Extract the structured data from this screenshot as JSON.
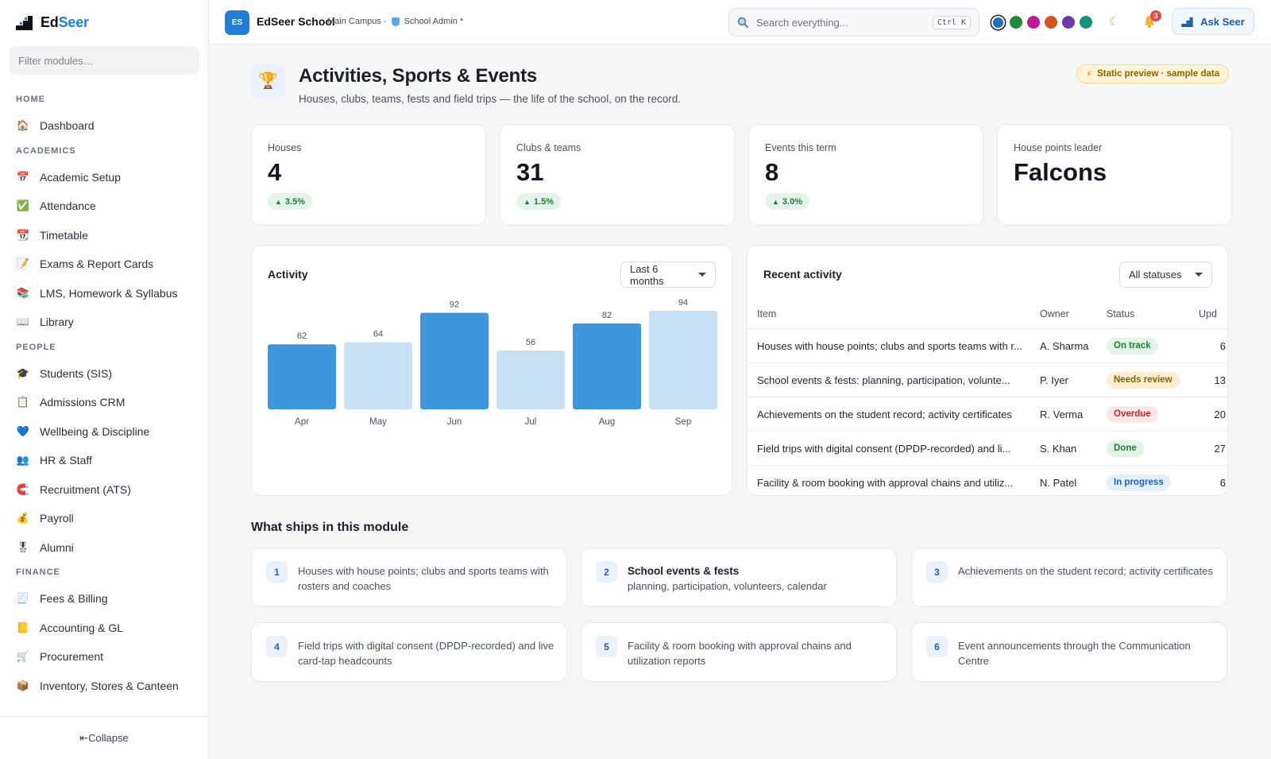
{
  "brand": {
    "name_plain": "Ed",
    "name_accent": "Seer",
    "accent_color": "#1f7fd4"
  },
  "sidebar": {
    "filter_placeholder": "Filter modules…",
    "sections": [
      {
        "title": "HOME",
        "items": [
          {
            "label": "Dashboard",
            "icon": "house-icon"
          }
        ]
      },
      {
        "title": "ACADEMICS",
        "items": [
          {
            "label": "Academic Setup",
            "icon": "calendar-icon"
          },
          {
            "label": "Attendance",
            "icon": "check-box-icon"
          },
          {
            "label": "Timetable",
            "icon": "calendar-grid-icon"
          },
          {
            "label": "Exams & Report Cards",
            "icon": "memo-icon"
          },
          {
            "label": "LMS, Homework & Syllabus",
            "icon": "books-icon"
          },
          {
            "label": "Library",
            "icon": "open-book-icon"
          }
        ]
      },
      {
        "title": "PEOPLE",
        "items": [
          {
            "label": "Students (SIS)",
            "icon": "graduation-cap-icon"
          },
          {
            "label": "Admissions CRM",
            "icon": "clipboard-icon"
          },
          {
            "label": "Wellbeing & Discipline",
            "icon": "heart-icon"
          },
          {
            "label": "HR & Staff",
            "icon": "people-icon"
          },
          {
            "label": "Recruitment (ATS)",
            "icon": "magnet-icon"
          },
          {
            "label": "Payroll",
            "icon": "money-bag-icon"
          },
          {
            "label": "Alumni",
            "icon": "medal-icon"
          }
        ]
      },
      {
        "title": "FINANCE",
        "items": [
          {
            "label": "Fees & Billing",
            "icon": "receipt-icon"
          },
          {
            "label": "Accounting & GL",
            "icon": "ledger-icon"
          },
          {
            "label": "Procurement",
            "icon": "cart-icon"
          },
          {
            "label": "Inventory, Stores & Canteen",
            "icon": "package-icon"
          }
        ]
      }
    ],
    "collapse_label": "⇤Collapse"
  },
  "topbar": {
    "badge": "ES",
    "school_name": "EdSeer School",
    "campus": "Main Campus ·",
    "role": "School Admin",
    "role_suffix": "*",
    "search_placeholder": "Search everything...",
    "shortcut": "Ctrl K",
    "theme_colors": [
      "#1f6fc0",
      "#1f8a3a",
      "#c0179a",
      "#d9541b",
      "#6a3aa8",
      "#13917f"
    ],
    "selected_theme": 0,
    "notifications": "3",
    "ask_label": "Ask Seer"
  },
  "page": {
    "title": "Activities, Sports & Events",
    "subtitle": "Houses, clubs, teams, fests and field trips — the life of the school, on the record.",
    "preview_badge": "Static preview · sample data"
  },
  "kpis": [
    {
      "label": "Houses",
      "value": "4",
      "delta": "3.5%"
    },
    {
      "label": "Clubs & teams",
      "value": "31",
      "delta": "1.5%"
    },
    {
      "label": "Events this term",
      "value": "8",
      "delta": "3.0%"
    },
    {
      "label": "House points leader",
      "value": "Falcons",
      "delta": ""
    }
  ],
  "activity": {
    "title": "Activity",
    "range": "Last 6 months"
  },
  "chart_data": {
    "type": "bar",
    "title": "Activity",
    "categories": [
      "Apr",
      "May",
      "Jun",
      "Jul",
      "Aug",
      "Sep"
    ],
    "values": [
      62,
      64,
      92,
      56,
      82,
      94
    ],
    "highlight": [
      true,
      false,
      true,
      false,
      true,
      false
    ],
    "colors": {
      "dark": "#3d96dc",
      "light": "#c7e0f5"
    },
    "ylim": [
      0,
      100
    ],
    "grid": false
  },
  "recent": {
    "title": "Recent activity",
    "filter": "All statuses",
    "columns": [
      "Item",
      "Owner",
      "Status",
      "Upd"
    ],
    "rows": [
      {
        "item": "Houses with house points; clubs and sports teams with r...",
        "owner": "A. Sharma",
        "status": "On track",
        "status_color": "#1b7f35",
        "status_bg": "#e3f4e6",
        "upd": "6"
      },
      {
        "item": "School events & fests: planning, participation, volunte...",
        "owner": "P. Iyer",
        "status": "Needs review",
        "status_color": "#8b5d00",
        "status_bg": "#fcefd0",
        "upd": "13"
      },
      {
        "item": "Achievements on the student record; activity certificates",
        "owner": "R. Verma",
        "status": "Overdue",
        "status_color": "#c1282d",
        "status_bg": "#fde6e6",
        "upd": "20"
      },
      {
        "item": "Field trips with digital consent (DPDP-recorded) and li...",
        "owner": "S. Khan",
        "status": "Done",
        "status_color": "#1b7f35",
        "status_bg": "#e3f4e6",
        "upd": "27"
      },
      {
        "item": "Facility & room booking with approval chains and utiliz...",
        "owner": "N. Patel",
        "status": "In progress",
        "status_color": "#1a65b5",
        "status_bg": "#e3effb",
        "upd": "6"
      }
    ]
  },
  "ships": {
    "title": "What ships in this module",
    "items": [
      {
        "num": "1",
        "heading": "",
        "text": "Houses with house points; clubs and sports teams with rosters and coaches"
      },
      {
        "num": "2",
        "heading": "School events & fests",
        "text": "planning, participation, volunteers, calendar"
      },
      {
        "num": "3",
        "heading": "",
        "text": "Achievements on the student record; activity certificates"
      },
      {
        "num": "4",
        "heading": "",
        "text": "Field trips with digital consent (DPDP-recorded) and live card-tap headcounts"
      },
      {
        "num": "5",
        "heading": "",
        "text": "Facility & room booking with approval chains and utilization reports"
      },
      {
        "num": "6",
        "heading": "",
        "text": "Event announcements through the Communication Centre"
      }
    ]
  }
}
